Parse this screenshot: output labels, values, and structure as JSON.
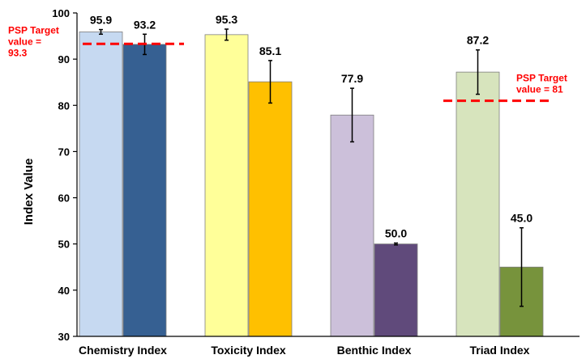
{
  "chart_data": {
    "type": "bar",
    "ylabel": "Index Value",
    "ylim": [
      30,
      100
    ],
    "yticks": [
      30,
      40,
      50,
      60,
      70,
      80,
      90,
      100
    ],
    "grid": false,
    "legend": "none",
    "categories": [
      "Chemistry Index",
      "Toxicity Index",
      "Benthic Index",
      "Triad Index"
    ],
    "series": [
      {
        "values": [
          95.9,
          95.3,
          77.9,
          87.2
        ],
        "labels": [
          "95.9",
          "95.3",
          "77.9",
          "87.2"
        ],
        "err": [
          0.5,
          1.2,
          5.8,
          4.8
        ],
        "colors": [
          "#c6d9f1",
          "#ffff99",
          "#ccc0da",
          "#d7e4bd"
        ]
      },
      {
        "values": [
          93.2,
          85.1,
          50.0,
          45.0
        ],
        "labels": [
          "93.2",
          "85.1",
          "50.0",
          "45.0"
        ],
        "err": [
          2.2,
          4.6,
          0.2,
          8.5
        ],
        "colors": [
          "#366092",
          "#ffc000",
          "#604a7b",
          "#77933c"
        ]
      }
    ],
    "targets": [
      {
        "category_index": 0,
        "value": 93.3,
        "label_lines": [
          "PSP Target",
          "value =",
          "93.3"
        ]
      },
      {
        "category_index": 3,
        "value": 81,
        "label_lines": [
          "PSP Target",
          "value = 81"
        ]
      }
    ],
    "target_color": "#ff0000"
  }
}
